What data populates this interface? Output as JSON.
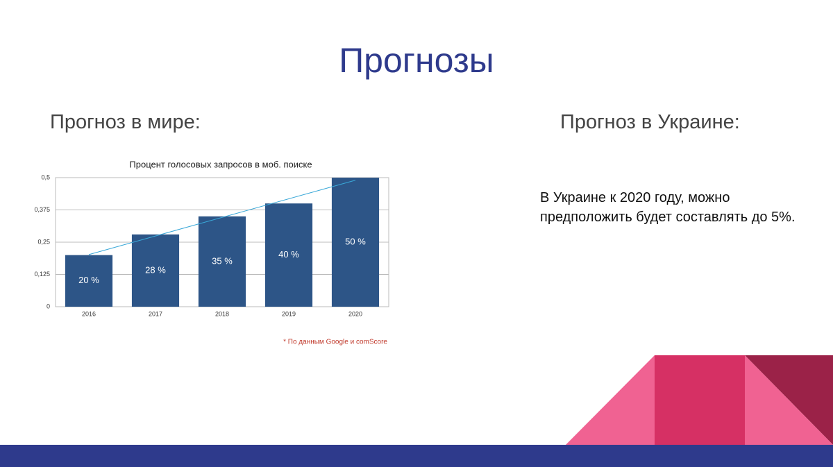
{
  "slide": {
    "title": "Прогнозы",
    "left_heading": "Прогноз в мире:",
    "right_heading": "Прогноз в Украине:",
    "right_text": "В Украине к 2020 году, можно предположить будет составлять до 5%.",
    "footnote": "* По данным Google и comScore"
  },
  "chart_data": {
    "type": "bar",
    "title": "Процент голосовых запросов в моб. поиске",
    "categories": [
      "2016",
      "2017",
      "2018",
      "2019",
      "2020"
    ],
    "values": [
      0.2,
      0.28,
      0.35,
      0.4,
      0.5
    ],
    "value_labels": [
      "20 %",
      "28 %",
      "35 %",
      "40 %",
      "50 %"
    ],
    "color": "#2d5587",
    "ylim": [
      0,
      0.5
    ],
    "yticks": [
      0,
      {
        "value": 0.125,
        "label": "0,125"
      },
      {
        "value": 0.25,
        "label": "0,25"
      },
      {
        "value": 0.375,
        "label": "0,375"
      },
      {
        "value": 0.5,
        "label": "0,5"
      }
    ],
    "grid": true,
    "trendline": "linear",
    "trendline_color": "#3aa8d8"
  }
}
